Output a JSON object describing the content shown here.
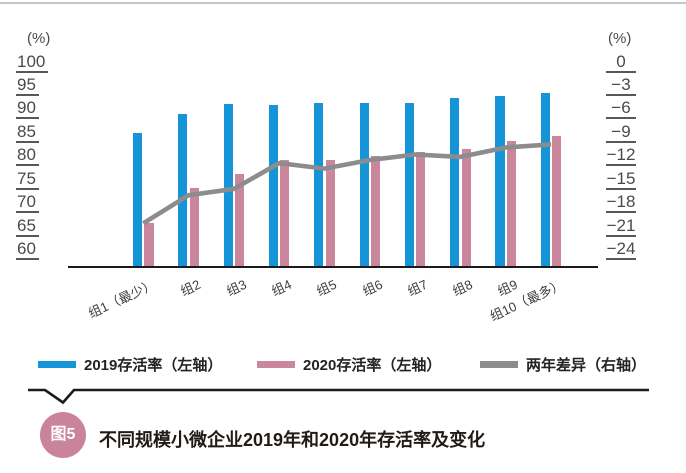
{
  "chart_data": {
    "type": "bar",
    "title": "不同规模小微企业2019年和2020年存活率及变化",
    "categories": [
      "组1（最少）",
      "组2",
      "组3",
      "组4",
      "组5",
      "组6",
      "组7",
      "组8",
      "组9",
      "组10（最多）"
    ],
    "series": [
      {
        "name": "2019存活率（左轴）",
        "type": "bar",
        "axis": "left",
        "color": "#1595d7",
        "values": [
          87.1,
          91.1,
          93.2,
          93.0,
          93.6,
          93.4,
          93.6,
          94.5,
          95.0,
          95.7
        ]
      },
      {
        "name": "2020存活率（左轴）",
        "type": "bar",
        "axis": "left",
        "color": "#c9869c",
        "values": [
          67.8,
          75.4,
          78.3,
          81.4,
          81.3,
          82.2,
          83.1,
          83.7,
          85.4,
          86.5
        ]
      },
      {
        "name": "两年差异（右轴）",
        "type": "line",
        "axis": "right",
        "color": "#8c8c8c",
        "values": [
          -19.3,
          -15.7,
          -14.9,
          -11.6,
          -12.3,
          -11.2,
          -10.5,
          -10.8,
          -9.6,
          -9.2
        ]
      }
    ],
    "left_axis": {
      "unit_label": "(%)",
      "range": [
        60,
        100
      ],
      "tick_values": [
        100,
        95,
        90,
        85,
        80,
        75,
        70,
        65,
        60
      ],
      "tick_labels": [
        "100",
        "95",
        "90",
        "85",
        "80",
        "75",
        "70",
        "65",
        "60"
      ]
    },
    "right_axis": {
      "unit_label": "(%)",
      "range": [
        -24,
        0
      ],
      "tick_values": [
        0,
        -3,
        -6,
        -9,
        -12,
        -15,
        -18,
        -21,
        -24
      ],
      "tick_labels": [
        "0",
        "−3",
        "−6",
        "−9",
        "−12",
        "−15",
        "−18",
        "−21",
        "−24"
      ]
    },
    "grid": false,
    "legend_position": "bottom"
  },
  "legend": {
    "items": [
      {
        "label": "2019存活率（左轴）",
        "color": "#1595d7"
      },
      {
        "label": "2020存活率（左轴）",
        "color": "#c9869c"
      },
      {
        "label": "两年差异（右轴）",
        "color": "#8c8c8c"
      }
    ]
  },
  "caption": {
    "badge": "图5",
    "text": "不同规模小微企业2019年和2020年存活率及变化",
    "badge_color": "#c9849b"
  },
  "colors": {
    "bar_2019": "#1595d7",
    "bar_2020": "#c9869c",
    "line_diff": "#8c8c8c",
    "axis_text": "#4c4948",
    "axis_line": "#1a1a1a",
    "top_border": "#c6c6c6",
    "caption_text": "#211b18",
    "caption_badge_bg": "#c9849b"
  }
}
